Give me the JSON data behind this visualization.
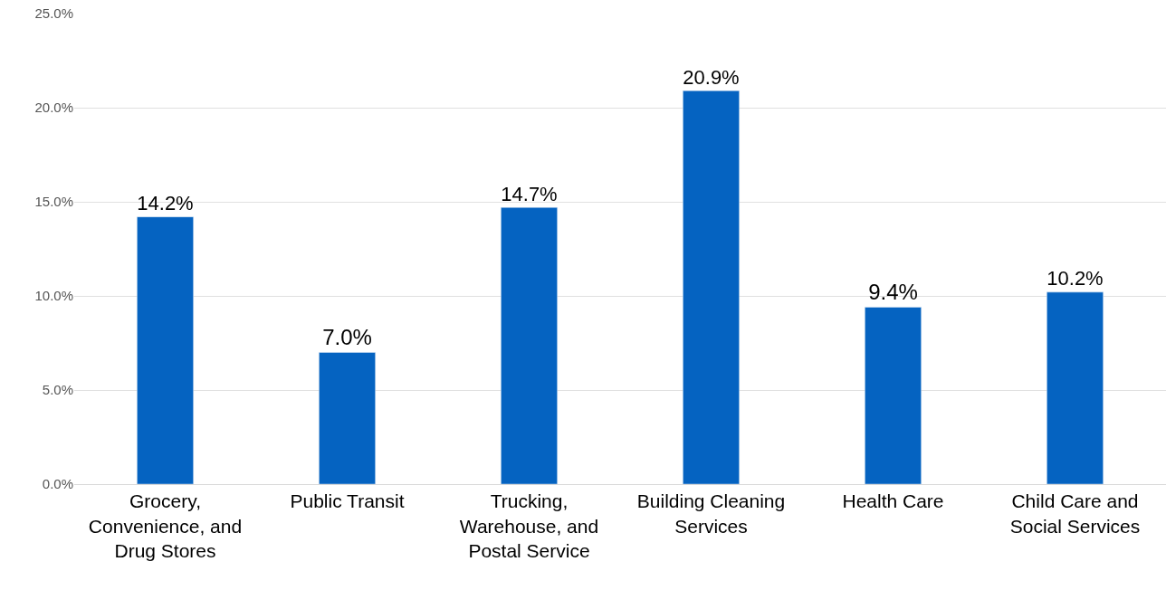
{
  "chart_data": {
    "type": "bar",
    "categories": [
      "Grocery, Convenience, and Drug Stores",
      "Public Transit",
      "Trucking, Warehouse, and Postal Service",
      "Building Cleaning Services",
      "Health Care",
      "Child Care and Social Services"
    ],
    "values": [
      14.2,
      7.0,
      14.7,
      20.9,
      9.4,
      10.2
    ],
    "color": "#0563c1",
    "value_labels": [
      "14.2%",
      "7.0%",
      "14.7%",
      "20.9%",
      "9.4%",
      "10.2%"
    ],
    "ylim": [
      0,
      25
    ],
    "yticks": [
      {
        "value": 0,
        "label": "0.0%"
      },
      {
        "value": 5,
        "label": "5.0%"
      },
      {
        "value": 10,
        "label": "10.0%"
      },
      {
        "value": 15,
        "label": "15.0%"
      },
      {
        "value": 20,
        "label": "20.0%"
      },
      {
        "value": 25,
        "label": "25.0%"
      }
    ],
    "grid": "y"
  }
}
